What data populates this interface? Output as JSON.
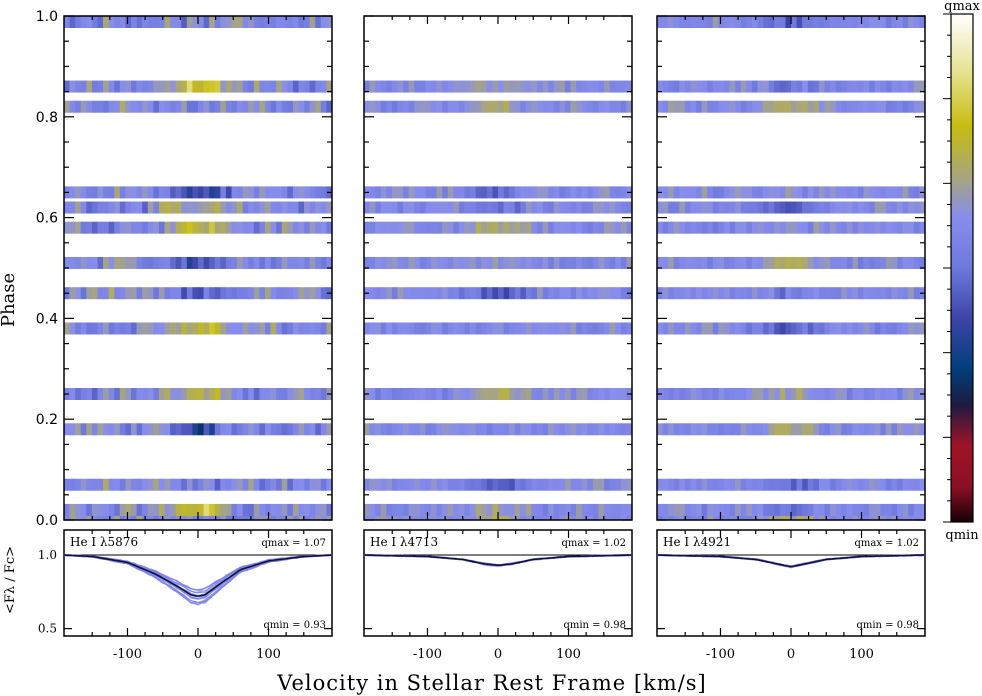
{
  "figure": {
    "xlabel": "Velocity in Stellar Rest Frame [km/s]",
    "ylabel_top": "Phase",
    "ylabel_bottom": "<Fλ / Fc>",
    "colorbar": {
      "top_label": "qmax",
      "bottom_label": "qmin"
    }
  },
  "chart_data": [
    {
      "type": "heatmap",
      "line_label": "He I λ5876",
      "qmax_label": "qmax = 1.07",
      "qmin_label": "qmin = 0.93",
      "x_range": [
        -190,
        190
      ],
      "phase_range": [
        0.0,
        1.0
      ],
      "yticks": [
        "0.0",
        "0.2",
        "0.4",
        "0.6",
        "0.8",
        "1.0"
      ],
      "xticks": [
        "-100",
        "0",
        "100"
      ],
      "phase_bands": [
        0.0,
        0.02,
        0.07,
        0.18,
        0.25,
        0.38,
        0.45,
        0.51,
        0.58,
        0.62,
        0.65,
        0.82,
        0.86,
        1.0
      ],
      "mean_profile": {
        "velocity": [
          -190,
          -150,
          -100,
          -60,
          -30,
          -10,
          0,
          10,
          30,
          60,
          100,
          150,
          190
        ],
        "flux": [
          1.0,
          0.99,
          0.95,
          0.87,
          0.79,
          0.73,
          0.72,
          0.73,
          0.8,
          0.9,
          0.96,
          0.99,
          1.0
        ]
      },
      "profile_yticks": [
        "0.5",
        "1.0"
      ],
      "profile_ylim": [
        0.45,
        1.17
      ]
    },
    {
      "type": "heatmap",
      "line_label": "He I λ4713",
      "qmax_label": "qmax = 1.02",
      "qmin_label": "qmin = 0.98",
      "x_range": [
        -190,
        190
      ],
      "phase_range": [
        0.0,
        1.0
      ],
      "xticks": [
        "-100",
        "0",
        "100"
      ],
      "phase_bands": [
        0.0,
        0.02,
        0.07,
        0.18,
        0.25,
        0.38,
        0.45,
        0.51,
        0.58,
        0.62,
        0.65,
        0.82,
        0.86
      ],
      "mean_profile": {
        "velocity": [
          -190,
          -100,
          -50,
          -20,
          0,
          20,
          50,
          100,
          190
        ],
        "flux": [
          1.0,
          0.99,
          0.97,
          0.94,
          0.93,
          0.94,
          0.97,
          0.99,
          1.0
        ]
      },
      "profile_ylim": [
        0.45,
        1.17
      ]
    },
    {
      "type": "heatmap",
      "line_label": "He I λ4921",
      "qmax_label": "qmax = 1.02",
      "qmin_label": "qmin = 0.98",
      "x_range": [
        -190,
        190
      ],
      "phase_range": [
        0.0,
        1.0
      ],
      "xticks": [
        "-100",
        "0",
        "100"
      ],
      "phase_bands": [
        0.0,
        0.02,
        0.07,
        0.18,
        0.25,
        0.38,
        0.45,
        0.51,
        0.58,
        0.62,
        0.65,
        0.82,
        0.86,
        1.0
      ],
      "mean_profile": {
        "velocity": [
          -190,
          -100,
          -50,
          -20,
          0,
          20,
          50,
          100,
          190
        ],
        "flux": [
          1.0,
          0.99,
          0.97,
          0.94,
          0.92,
          0.94,
          0.97,
          0.99,
          1.0
        ]
      },
      "profile_ylim": [
        0.45,
        1.17
      ]
    }
  ]
}
